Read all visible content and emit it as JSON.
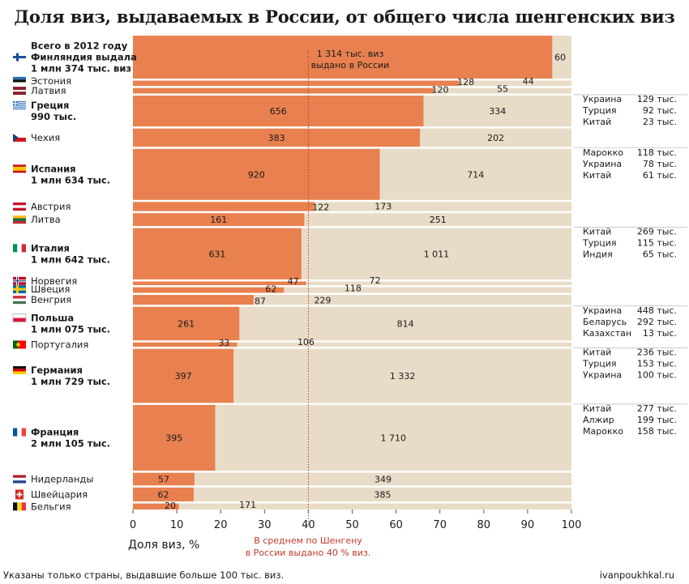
{
  "title": "Доля виз, выдаваемых в России, от общего числа шенгенских виз",
  "colors": {
    "russia": "#e8814f",
    "other": "#e8dcc8",
    "median": "#c0392b",
    "text": "#1a1a1a"
  },
  "chart_data": {
    "type": "bar",
    "orientation": "horizontal-stacked-marimekko",
    "xlabel": "Доля виз, %",
    "xlim": [
      0,
      100
    ],
    "xticks": [
      0,
      10,
      20,
      30,
      40,
      50,
      60,
      70,
      80,
      90,
      100
    ],
    "reference_line": {
      "x": 40,
      "label": "В среднем по Шенгену в России выдано 40 % виз."
    },
    "annotation": "1 314 тыс. виз выдано в России",
    "units": "тыс. виз",
    "series": [
      {
        "name": "Выдано в России",
        "color": "#e8814f"
      },
      {
        "name": "Выдано в других странах",
        "color": "#e8dcc8"
      }
    ],
    "countries": [
      {
        "name": "Финляндия",
        "flag": "fi",
        "russia": 1314,
        "other": 60,
        "label": [
          "Всего в 2012 году",
          "Финляндия выдала",
          "1 млн 374 тыс. виз"
        ]
      },
      {
        "name": "Эстония",
        "flag": "ee",
        "russia": 128,
        "other": 44,
        "label": [
          "Эстония"
        ]
      },
      {
        "name": "Латвия",
        "flag": "lv",
        "russia": 120,
        "other": 55,
        "label": [
          "Латвия"
        ]
      },
      {
        "name": "Греция",
        "flag": "gr",
        "russia": 656,
        "other": 334,
        "label": [
          "Греция",
          "990 тыс."
        ],
        "top_other": [
          {
            "country": "Украина",
            "value": "129 тыс."
          },
          {
            "country": "Турция",
            "value": "92 тыс."
          },
          {
            "country": "Китай",
            "value": "23 тыс."
          }
        ]
      },
      {
        "name": "Чехия",
        "flag": "cz",
        "russia": 383,
        "other": 202,
        "label": [
          "Чехия"
        ]
      },
      {
        "name": "Испания",
        "flag": "es",
        "russia": 920,
        "other": 714,
        "label": [
          "Испания",
          "1 млн 634 тыс."
        ],
        "top_other": [
          {
            "country": "Марокко",
            "value": "118 тыс."
          },
          {
            "country": "Украина",
            "value": "78 тыс."
          },
          {
            "country": "Китай",
            "value": "61 тыс."
          }
        ]
      },
      {
        "name": "Австрия",
        "flag": "at",
        "russia": 122,
        "other": 173,
        "label": [
          "Австрия"
        ]
      },
      {
        "name": "Литва",
        "flag": "lt",
        "russia": 161,
        "other": 251,
        "label": [
          "Литва"
        ]
      },
      {
        "name": "Италия",
        "flag": "it",
        "russia": 631,
        "other": 1011,
        "label": [
          "Италия",
          "1 млн 642 тыс."
        ],
        "top_other": [
          {
            "country": "Китай",
            "value": "269 тыс."
          },
          {
            "country": "Турция",
            "value": "115 тыс."
          },
          {
            "country": "Индия",
            "value": "65 тыс."
          }
        ]
      },
      {
        "name": "Норвегия",
        "flag": "no",
        "russia": 47,
        "other": 72,
        "label": [
          "Норвегия"
        ]
      },
      {
        "name": "Швеция",
        "flag": "se",
        "russia": 62,
        "other": 118,
        "label": [
          "Швеция"
        ]
      },
      {
        "name": "Венгрия",
        "flag": "hu",
        "russia": 87,
        "other": 229,
        "label": [
          "Венгрия"
        ]
      },
      {
        "name": "Польша",
        "flag": "pl",
        "russia": 261,
        "other": 814,
        "label": [
          "Польша",
          "1 млн 075 тыс."
        ],
        "top_other": [
          {
            "country": "Украина",
            "value": "448 тыс."
          },
          {
            "country": "Беларусь",
            "value": "292 тыс."
          },
          {
            "country": "Казахстан",
            "value": "13 тыс."
          }
        ]
      },
      {
        "name": "Португалия",
        "flag": "pt",
        "russia": 33,
        "other": 106,
        "label": [
          "Португалия"
        ]
      },
      {
        "name": "Германия",
        "flag": "de",
        "russia": 397,
        "other": 1332,
        "label": [
          "Германия",
          "1 млн 729 тыс."
        ],
        "top_other": [
          {
            "country": "Китай",
            "value": "236 тыс."
          },
          {
            "country": "Турция",
            "value": "153 тыс."
          },
          {
            "country": "Украина",
            "value": "100 тыс."
          }
        ]
      },
      {
        "name": "Франция",
        "flag": "fr",
        "russia": 395,
        "other": 1710,
        "label": [
          "Франция",
          "2 млн 105 тыс."
        ],
        "top_other": [
          {
            "country": "Китай",
            "value": "277 тыс."
          },
          {
            "country": "Алжир",
            "value": "199 тыс."
          },
          {
            "country": "Марокко",
            "value": "158 тыс."
          }
        ]
      },
      {
        "name": "Нидерланды",
        "flag": "nl",
        "russia": 57,
        "other": 349,
        "label": [
          "Нидерланды"
        ]
      },
      {
        "name": "Швейцария",
        "flag": "ch",
        "russia": 62,
        "other": 385,
        "label": [
          "Швейцария"
        ]
      },
      {
        "name": "Бельгия",
        "flag": "be",
        "russia": 20,
        "other": 171,
        "label": [
          "Бельгия"
        ]
      }
    ]
  },
  "footer": {
    "note": "Указаны только страны, выдавшие больше 100 тыс. виз.",
    "source": "ivanpoukhkal.ru"
  }
}
